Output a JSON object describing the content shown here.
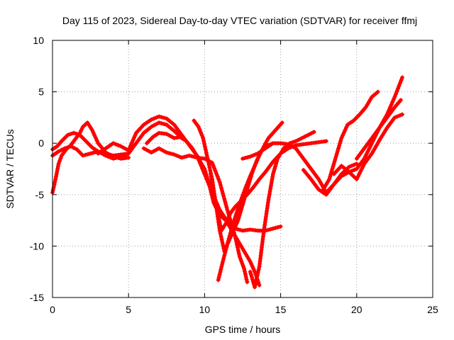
{
  "chart_data": {
    "type": "scatter",
    "title": "Day 115 of 2023, Sidereal Day-to-day VTEC variation (SDTVAR) for receiver ffmj",
    "xlabel": "GPS time / hours",
    "ylabel": "SDTVAR / TECUs",
    "xlim": [
      0,
      25
    ],
    "ylim": [
      -15,
      10
    ],
    "xticks": [
      "0",
      "5",
      "10",
      "15",
      "20",
      "25"
    ],
    "yticks": [
      "-15",
      "-10",
      "-5",
      "0",
      "5",
      "10"
    ],
    "grid": true,
    "marker": "+",
    "color": "#ff0000",
    "series": [
      {
        "name": "arc-1",
        "x": [
          0.0,
          0.2,
          0.4,
          0.6,
          0.9,
          1.2,
          1.5,
          1.8,
          2.0,
          2.3,
          2.6,
          3.0,
          3.5,
          4.0,
          4.5,
          5.0
        ],
        "y": [
          -4.8,
          -3.5,
          -2.0,
          -1.2,
          -0.6,
          -0.2,
          0.4,
          1.0,
          1.6,
          2.0,
          1.3,
          0.0,
          -0.9,
          -1.3,
          -1.5,
          -1.4
        ]
      },
      {
        "name": "arc-2",
        "x": [
          0.0,
          0.3,
          0.6,
          1.0,
          1.4,
          1.8,
          2.2,
          2.6,
          3.0,
          3.5,
          4.0,
          4.5,
          5.0
        ],
        "y": [
          -0.6,
          -0.3,
          0.2,
          0.8,
          1.0,
          0.8,
          0.2,
          -0.4,
          -0.8,
          -1.0,
          -1.2,
          -1.1,
          -1.0
        ]
      },
      {
        "name": "arc-3",
        "x": [
          0.0,
          0.4,
          0.8,
          1.2,
          1.6,
          2.0,
          2.5,
          3.0,
          3.5,
          4.0,
          4.5,
          5.0,
          5.5,
          6.0,
          6.5,
          7.0,
          7.5,
          8.0,
          8.5
        ],
        "y": [
          -1.2,
          -0.8,
          -0.5,
          -0.3,
          -0.6,
          -1.2,
          -1.0,
          -0.8,
          -1.2,
          -1.5,
          -1.3,
          -1.0,
          0.0,
          1.0,
          1.6,
          2.0,
          1.8,
          1.2,
          0.5
        ]
      },
      {
        "name": "arc-4",
        "x": [
          3.0,
          3.5,
          4.0,
          4.5,
          5.0,
          5.5,
          6.0,
          6.5,
          7.0,
          7.5,
          8.0,
          8.5,
          9.0,
          9.5,
          10.0,
          10.5,
          11.0,
          11.5,
          12.0,
          12.5,
          13.0,
          13.5,
          14.0,
          14.5,
          15.0
        ],
        "y": [
          -1.0,
          -0.5,
          0.0,
          -0.3,
          -0.7,
          1.0,
          1.8,
          2.3,
          2.6,
          2.4,
          1.8,
          0.8,
          -0.2,
          -1.2,
          -3.0,
          -4.8,
          -6.5,
          -7.6,
          -8.3,
          -8.5,
          -8.4,
          -8.5,
          -8.5,
          -8.3,
          -8.1
        ]
      },
      {
        "name": "arc-5",
        "x": [
          6.2,
          6.6,
          7.0,
          7.5,
          8.0,
          8.4,
          8.8,
          9.2,
          9.6,
          10.0,
          10.3,
          10.6,
          11.0,
          11.4,
          11.8,
          12.2,
          12.6,
          13.0,
          13.3,
          13.6
        ],
        "y": [
          0.0,
          0.6,
          1.0,
          0.9,
          0.5,
          0.6,
          0.2,
          -0.5,
          -1.5,
          -2.5,
          -4.0,
          -5.8,
          -7.0,
          -7.5,
          -8.5,
          -9.5,
          -10.5,
          -11.5,
          -12.5,
          -13.8
        ]
      },
      {
        "name": "arc-6",
        "x": [
          6.0,
          6.5,
          7.0,
          7.5,
          8.0,
          8.5,
          9.0,
          9.5,
          10.0,
          10.5,
          11.0,
          11.5,
          12.0,
          12.3,
          12.6,
          12.8
        ],
        "y": [
          -0.5,
          -0.9,
          -0.5,
          -0.9,
          -1.1,
          -1.4,
          -1.2,
          -1.4,
          -1.5,
          -1.9,
          -3.8,
          -6.5,
          -9.0,
          -11.0,
          -12.2,
          -13.5
        ]
      },
      {
        "name": "arc-7",
        "x": [
          9.3,
          9.6,
          9.9,
          10.2,
          10.5,
          10.7,
          10.9,
          11.1,
          11.4,
          11.7,
          12.0,
          12.4,
          12.8,
          13.2,
          13.6,
          14.0,
          14.5,
          15.0,
          15.5,
          16.0,
          16.5,
          17.0,
          17.5,
          18.0
        ],
        "y": [
          2.2,
          1.6,
          0.5,
          -1.5,
          -3.5,
          -5.5,
          -7.0,
          -8.5,
          -7.8,
          -6.8,
          -6.2,
          -5.6,
          -5.0,
          -4.3,
          -3.5,
          -2.8,
          -1.8,
          -1.0,
          -0.5,
          -0.2,
          -0.1,
          0.0,
          0.1,
          0.2
        ]
      },
      {
        "name": "arc-8",
        "x": [
          10.4,
          10.7,
          11.0,
          11.3,
          11.6,
          11.9,
          12.2,
          12.5,
          12.8,
          13.1,
          13.4,
          13.7,
          14.0,
          14.5
        ],
        "y": [
          -3.0,
          -5.5,
          -8.5,
          -10.5,
          -9.5,
          -8.5,
          -7.5,
          -6.0,
          -4.5,
          -3.0,
          -1.8,
          -0.8,
          -0.3,
          0.0
        ]
      },
      {
        "name": "arc-9",
        "x": [
          10.9,
          11.2,
          11.5,
          11.8,
          12.1,
          12.4,
          12.7,
          13.0,
          13.3,
          13.6,
          13.9,
          14.2,
          14.5,
          14.8,
          15.1
        ],
        "y": [
          -13.3,
          -11.5,
          -9.8,
          -8.2,
          -6.8,
          -5.5,
          -4.3,
          -3.2,
          -2.2,
          -1.2,
          -0.3,
          0.5,
          1.0,
          1.5,
          2.0
        ]
      },
      {
        "name": "arc-10",
        "x": [
          13.0,
          13.3,
          13.6,
          13.9,
          14.2,
          14.5,
          14.8,
          15.2,
          15.6,
          16.0,
          16.4,
          16.8,
          17.2
        ],
        "y": [
          -12.5,
          -14.0,
          -12.0,
          -8.5,
          -5.5,
          -3.0,
          -1.5,
          -0.5,
          0.0,
          0.2,
          0.5,
          0.8,
          1.1
        ]
      },
      {
        "name": "arc-11",
        "x": [
          12.5,
          13.0,
          13.5,
          14.0,
          14.5,
          15.0,
          15.5,
          16.0,
          16.5,
          17.0,
          17.5,
          18.0,
          18.5,
          19.0,
          19.5,
          20.0
        ],
        "y": [
          -1.5,
          -1.3,
          -1.0,
          -0.5,
          0.0,
          0.0,
          -0.1,
          -0.5,
          -1.5,
          -2.5,
          -3.5,
          -4.8,
          -4.0,
          -3.0,
          -2.3,
          -2.0
        ]
      },
      {
        "name": "arc-12",
        "x": [
          16.5,
          17.0,
          17.5,
          18.0,
          18.5,
          19.0,
          19.5,
          20.0,
          20.5,
          21.0,
          21.5,
          22.0,
          22.5,
          23.0
        ],
        "y": [
          -2.6,
          -3.5,
          -4.5,
          -5.0,
          -4.0,
          -3.2,
          -2.8,
          -2.5,
          -1.5,
          0.0,
          1.5,
          2.8,
          4.5,
          6.4
        ]
      },
      {
        "name": "arc-13",
        "x": [
          17.8,
          18.2,
          18.6,
          19.0,
          19.4,
          19.8,
          20.2,
          20.6,
          21.0,
          21.4
        ],
        "y": [
          -4.5,
          -3.5,
          -1.5,
          0.5,
          1.8,
          2.2,
          2.8,
          3.5,
          4.5,
          5.0
        ]
      },
      {
        "name": "arc-14",
        "x": [
          18.5,
          19.0,
          19.5,
          20.0,
          20.5,
          21.0,
          21.5,
          22.0,
          22.5,
          23.0
        ],
        "y": [
          -3.0,
          -2.2,
          -2.8,
          -3.5,
          -2.0,
          -1.0,
          0.3,
          1.5,
          2.5,
          2.8
        ]
      },
      {
        "name": "arc-15",
        "x": [
          20.0,
          20.5,
          21.0,
          21.5,
          22.0,
          22.5,
          22.9
        ],
        "y": [
          -1.5,
          -0.5,
          0.5,
          1.5,
          2.5,
          3.5,
          4.2
        ]
      }
    ]
  }
}
